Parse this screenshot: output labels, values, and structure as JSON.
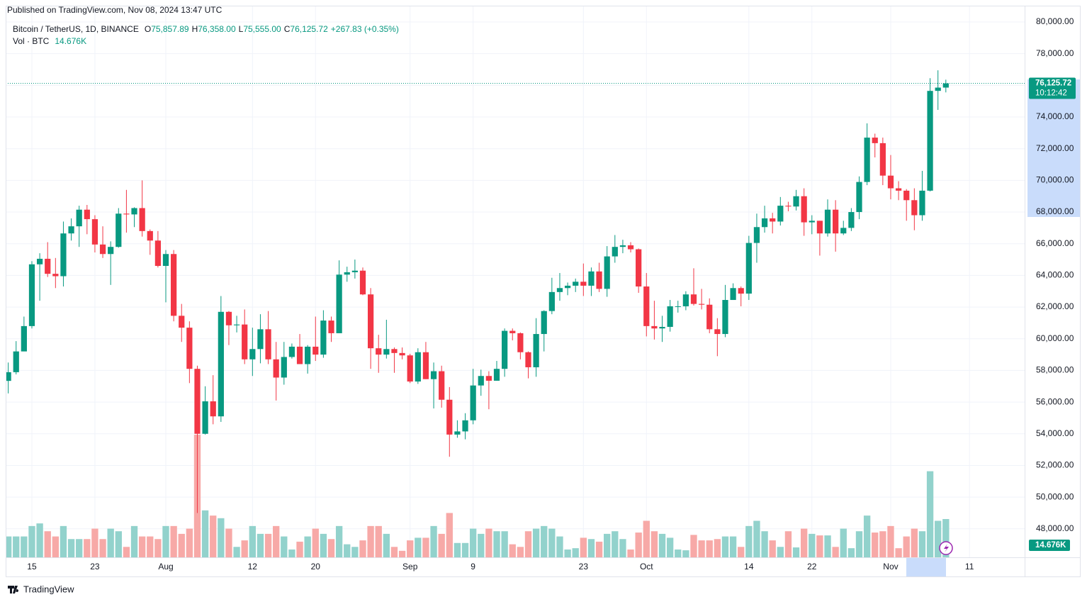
{
  "chart_data": {
    "type": "candlestick",
    "publisher": "Published on TradingView.com, Nov 08, 2024 13:47 UTC",
    "title": "Bitcoin / TetherUS, 1D, BINANCE",
    "legend": [
      {
        "key": "O",
        "value": "75,857.89"
      },
      {
        "key": "H",
        "value": "76,358.00"
      },
      {
        "key": "L",
        "value": "75,555.00"
      },
      {
        "key": "C",
        "value": "76,125.72"
      }
    ],
    "change": "+267.83 (+0.35%)",
    "volume_legend": "Vol · BTC",
    "volume_label": "14.676K",
    "price_label": "76,125.72",
    "countdown": "10:12:42",
    "brand": "TradingView",
    "colors": {
      "up": "#089981",
      "down": "#f23645",
      "volume_up": "#92d2cc",
      "volume_down": "#f7a9a7"
    },
    "x": [
      "2024-07-12",
      "2024-07-13",
      "2024-07-14",
      "2024-07-15",
      "2024-07-16",
      "2024-07-17",
      "2024-07-18",
      "2024-07-19",
      "2024-07-20",
      "2024-07-21",
      "2024-07-22",
      "2024-07-23",
      "2024-07-24",
      "2024-07-25",
      "2024-07-26",
      "2024-07-27",
      "2024-07-28",
      "2024-07-29",
      "2024-07-30",
      "2024-07-31",
      "2024-08-01",
      "2024-08-02",
      "2024-08-03",
      "2024-08-04",
      "2024-08-05",
      "2024-08-06",
      "2024-08-07",
      "2024-08-08",
      "2024-08-09",
      "2024-08-10",
      "2024-08-11",
      "2024-08-12",
      "2024-08-13",
      "2024-08-14",
      "2024-08-15",
      "2024-08-16",
      "2024-08-17",
      "2024-08-18",
      "2024-08-19",
      "2024-08-20",
      "2024-08-21",
      "2024-08-22",
      "2024-08-23",
      "2024-08-24",
      "2024-08-25",
      "2024-08-26",
      "2024-08-27",
      "2024-08-28",
      "2024-08-29",
      "2024-08-30",
      "2024-08-31",
      "2024-09-01",
      "2024-09-02",
      "2024-09-03",
      "2024-09-04",
      "2024-09-05",
      "2024-09-06",
      "2024-09-07",
      "2024-09-08",
      "2024-09-09",
      "2024-09-10",
      "2024-09-11",
      "2024-09-12",
      "2024-09-13",
      "2024-09-14",
      "2024-09-15",
      "2024-09-16",
      "2024-09-17",
      "2024-09-18",
      "2024-09-19",
      "2024-09-20",
      "2024-09-21",
      "2024-09-22",
      "2024-09-23",
      "2024-09-24",
      "2024-09-25",
      "2024-09-26",
      "2024-09-27",
      "2024-09-28",
      "2024-09-29",
      "2024-09-30",
      "2024-10-01",
      "2024-10-02",
      "2024-10-03",
      "2024-10-04",
      "2024-10-05",
      "2024-10-06",
      "2024-10-07",
      "2024-10-08",
      "2024-10-09",
      "2024-10-10",
      "2024-10-11",
      "2024-10-12",
      "2024-10-13",
      "2024-10-14",
      "2024-10-15",
      "2024-10-16",
      "2024-10-17",
      "2024-10-18",
      "2024-10-19",
      "2024-10-20",
      "2024-10-21",
      "2024-10-22",
      "2024-10-23",
      "2024-10-24",
      "2024-10-25",
      "2024-10-26",
      "2024-10-27",
      "2024-10-28",
      "2024-10-29",
      "2024-10-30",
      "2024-10-31",
      "2024-11-01",
      "2024-11-02",
      "2024-11-03",
      "2024-11-04",
      "2024-11-05",
      "2024-11-06",
      "2024-11-07",
      "2024-11-08"
    ],
    "open": [
      57340,
      57890,
      59200,
      60800,
      64700,
      65050,
      64100,
      63950,
      66650,
      67100,
      68150,
      67550,
      65950,
      65350,
      65800,
      67900,
      67850,
      68250,
      66800,
      66200,
      64600,
      65350,
      61450,
      60700,
      58100,
      54000,
      56050,
      55100,
      61700,
      60850,
      60900,
      58700,
      59350,
      60600,
      58700,
      57550,
      58850,
      59500,
      58400,
      59500,
      59000,
      61150,
      60350,
      64050,
      64200,
      64300,
      62800,
      59400,
      59000,
      59350,
      59100,
      58950,
      57300,
      59150,
      57450,
      57950,
      56150,
      53950,
      54150,
      54850,
      57050,
      57650,
      57350,
      58100,
      60500,
      60350,
      59150,
      58200,
      60300,
      61750,
      62950,
      63200,
      63350,
      63600,
      63350,
      64250,
      63150,
      65200,
      65800,
      65900,
      65650,
      63300,
      60800,
      60650,
      60750,
      62050,
      62050,
      62800,
      62200,
      62150,
      60600,
      60300,
      62450,
      63200,
      62850,
      66050,
      67050,
      67600,
      67400,
      68400,
      68350,
      69000,
      67350,
      67450,
      66650,
      68150,
      66650,
      67000,
      68000,
      69900,
      72700,
      72350,
      70300,
      69500,
      69350,
      68750,
      67800,
      69350,
      75650,
      75857.89
    ],
    "high": [
      58500,
      59850,
      61400,
      64900,
      65400,
      66100,
      65100,
      67400,
      67600,
      68400,
      68450,
      67800,
      67100,
      66150,
      68250,
      69400,
      68300,
      70000,
      66900,
      66800,
      65600,
      65600,
      62200,
      61100,
      58300,
      57000,
      57700,
      62700,
      61750,
      61450,
      61850,
      60700,
      61550,
      61750,
      59800,
      59800,
      59700,
      60300,
      59600,
      61400,
      61800,
      61400,
      64950,
      64550,
      65000,
      64500,
      63200,
      60250,
      61200,
      59450,
      59450,
      59050,
      59400,
      59800,
      58500,
      58300,
      56950,
      54850,
      55300,
      58100,
      58050,
      57950,
      58600,
      60650,
      60650,
      60400,
      59200,
      61300,
      61800,
      63850,
      64150,
      63550,
      63800,
      64750,
      64500,
      64800,
      65850,
      66550,
      66250,
      66100,
      65700,
      64150,
      62400,
      61450,
      62450,
      62400,
      63000,
      64450,
      63150,
      62550,
      61300,
      63400,
      63500,
      63300,
      66500,
      67900,
      68400,
      67950,
      68950,
      68650,
      69400,
      69500,
      67800,
      67450,
      68800,
      68750,
      67450,
      68250,
      70250,
      73600,
      72950,
      72700,
      71600,
      69950,
      69450,
      69500,
      70600,
      76450,
      76950,
      76358
    ],
    "low": [
      56550,
      57750,
      59250,
      60650,
      62400,
      63900,
      63200,
      63300,
      66200,
      65800,
      66600,
      65450,
      65100,
      63400,
      65750,
      66700,
      67050,
      66450,
      65300,
      64500,
      62300,
      61100,
      59800,
      57200,
      49000,
      53950,
      54600,
      54750,
      59600,
      60400,
      58400,
      57650,
      58450,
      58400,
      56100,
      57100,
      58750,
      58400,
      57800,
      58600,
      58800,
      59800,
      60350,
      63600,
      63800,
      62750,
      58100,
      57850,
      58750,
      57850,
      58700,
      57200,
      57150,
      57450,
      55600,
      55650,
      52550,
      53750,
      53650,
      54600,
      56400,
      55550,
      57350,
      57600,
      59900,
      58700,
      57500,
      57600,
      59200,
      61550,
      62400,
      62750,
      62950,
      62700,
      62700,
      62950,
      62650,
      64800,
      65400,
      65450,
      62900,
      60150,
      59950,
      59800,
      60450,
      61650,
      61800,
      62100,
      61850,
      60350,
      58900,
      60100,
      62450,
      62050,
      62450,
      64800,
      66700,
      66650,
      67150,
      68050,
      68100,
      66500,
      66600,
      65250,
      66450,
      65500,
      66550,
      66800,
      67550,
      69700,
      71450,
      69700,
      68800,
      68750,
      67450,
      66850,
      67450,
      69300,
      74450,
      75555
    ],
    "close": [
      57890,
      59200,
      60800,
      64700,
      65050,
      64100,
      63950,
      66650,
      67100,
      68150,
      67550,
      65950,
      65350,
      65800,
      67900,
      67850,
      68250,
      66800,
      66200,
      64600,
      65350,
      61450,
      60700,
      58100,
      54000,
      56050,
      55100,
      61700,
      60850,
      60900,
      58700,
      59350,
      60600,
      58700,
      57550,
      58850,
      59500,
      58400,
      59500,
      59000,
      61150,
      60350,
      64050,
      64200,
      64300,
      62800,
      59400,
      59000,
      59350,
      59100,
      58950,
      57300,
      59150,
      57450,
      57950,
      56150,
      53950,
      54150,
      54850,
      57050,
      57650,
      57350,
      58100,
      60500,
      60350,
      59150,
      58200,
      60300,
      61750,
      62950,
      63200,
      63350,
      63600,
      63350,
      64250,
      63150,
      65200,
      65800,
      65900,
      65650,
      63300,
      60800,
      60650,
      60750,
      62050,
      62050,
      62800,
      62200,
      62150,
      60600,
      60300,
      62450,
      63200,
      62850,
      66050,
      67050,
      67600,
      67400,
      68400,
      68350,
      69000,
      67350,
      67450,
      66650,
      68150,
      66650,
      67000,
      68000,
      69900,
      72700,
      72350,
      70300,
      69500,
      69350,
      68750,
      67800,
      69350,
      75650,
      75857.89,
      76125.72
    ],
    "volume": [
      8000,
      8000,
      8000,
      12000,
      13000,
      10000,
      8000,
      12000,
      7000,
      7000,
      7000,
      11000,
      7000,
      11000,
      10000,
      4000,
      12000,
      8000,
      8000,
      7000,
      12000,
      12000,
      9000,
      11000,
      47000,
      18000,
      16000,
      15000,
      11000,
      4000,
      6500,
      12000,
      9000,
      9000,
      12000,
      8000,
      3000,
      6000,
      8000,
      11000,
      9000,
      7000,
      12000,
      5000,
      4000,
      6500,
      12000,
      12000,
      9000,
      4000,
      2500,
      6500,
      7500,
      7500,
      12000,
      9000,
      17000,
      5500,
      5500,
      11000,
      9000,
      11000,
      10000,
      10000,
      5000,
      4000,
      10000,
      11000,
      12000,
      11000,
      8000,
      3000,
      3500,
      7500,
      7000,
      6000,
      9000,
      10000,
      7000,
      3000,
      9500,
      14000,
      10000,
      9000,
      7500,
      3000,
      2700,
      8600,
      6500,
      6500,
      7000,
      8000,
      8000,
      4000,
      12000,
      14000,
      10000,
      6500,
      4000,
      10000,
      3800,
      11000,
      9000,
      8400,
      8400,
      4000,
      11000,
      3500,
      10000,
      16000,
      9500,
      10000,
      12000,
      3500,
      8000,
      11000,
      10000,
      33000,
      14000,
      14676
    ],
    "xlim": [
      "2024-07-11",
      "2024-11-18"
    ],
    "xticks": [
      {
        "value": "2024-07-15",
        "label": "15"
      },
      {
        "value": "2024-07-23",
        "label": "23"
      },
      {
        "value": "2024-08-01",
        "label": "Aug"
      },
      {
        "value": "2024-08-12",
        "label": "12"
      },
      {
        "value": "2024-08-20",
        "label": "20"
      },
      {
        "value": "2024-09-01",
        "label": "Sep"
      },
      {
        "value": "2024-09-09",
        "label": "9"
      },
      {
        "value": "2024-09-23",
        "label": "23"
      },
      {
        "value": "2024-10-01",
        "label": "Oct"
      },
      {
        "value": "2024-10-14",
        "label": "14"
      },
      {
        "value": "2024-10-22",
        "label": "22"
      },
      {
        "value": "2024-11-01",
        "label": "Nov"
      },
      {
        "value": "2024-11-11",
        "label": "11"
      }
    ],
    "ylim": [
      46200,
      81030
    ],
    "yticks": [
      {
        "value": 48000,
        "label": "48,000.00"
      },
      {
        "value": 50000,
        "label": "50,000.00"
      },
      {
        "value": 52000,
        "label": "52,000.00"
      },
      {
        "value": 54000,
        "label": "54,000.00"
      },
      {
        "value": 56000,
        "label": "56,000.00"
      },
      {
        "value": 58000,
        "label": "58,000.00"
      },
      {
        "value": 60000,
        "label": "60,000.00"
      },
      {
        "value": 62000,
        "label": "62,000.00"
      },
      {
        "value": 64000,
        "label": "64,000.00"
      },
      {
        "value": 66000,
        "label": "66,000.00"
      },
      {
        "value": 68000,
        "label": "68,000.00"
      },
      {
        "value": 70000,
        "label": "70,000.00"
      },
      {
        "value": 72000,
        "label": "72,000.00"
      },
      {
        "value": 74000,
        "label": "74,000.00"
      },
      {
        "value": 76000,
        "label": "76,000.00"
      },
      {
        "value": 78000,
        "label": "78,000.00"
      },
      {
        "value": 80000,
        "label": "80,000.00"
      }
    ],
    "grid": true
  }
}
